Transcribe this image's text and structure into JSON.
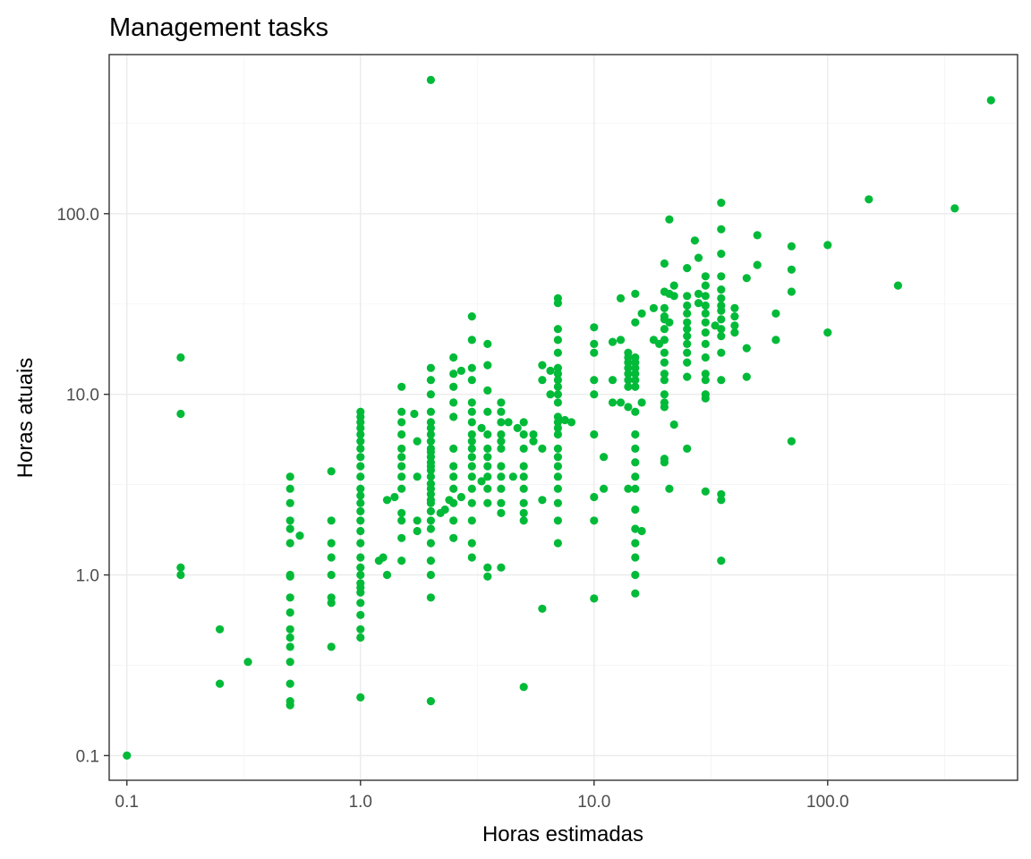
{
  "chart_data": {
    "type": "scatter",
    "title": "Management tasks",
    "xlabel": "Horas estimadas",
    "ylabel": "Horas atuais",
    "x_scale": "log10",
    "y_scale": "log10",
    "xlim": [
      0.084,
      650
    ],
    "ylim": [
      0.073,
      760
    ],
    "x_ticks": [
      0.1,
      1,
      10,
      100
    ],
    "x_tick_labels": [
      "0.1",
      "1.0",
      "10.0",
      "100.0"
    ],
    "y_ticks": [
      0.1,
      1,
      10,
      100
    ],
    "y_tick_labels": [
      "0.1",
      "1.0",
      "10.0",
      "100.0"
    ],
    "grid": true,
    "point_color": "#00BA38",
    "points": [
      [
        0.1,
        0.1
      ],
      [
        0.17,
        16
      ],
      [
        0.17,
        7.8
      ],
      [
        0.17,
        1.1
      ],
      [
        0.17,
        1.0
      ],
      [
        0.25,
        0.5
      ],
      [
        0.25,
        0.25
      ],
      [
        0.33,
        0.33
      ],
      [
        0.5,
        3.5
      ],
      [
        0.5,
        3.0
      ],
      [
        0.5,
        2.5
      ],
      [
        0.5,
        2.0
      ],
      [
        0.5,
        1.8
      ],
      [
        0.5,
        1.5
      ],
      [
        0.5,
        1.0
      ],
      [
        0.5,
        0.98
      ],
      [
        0.5,
        0.75
      ],
      [
        0.5,
        0.62
      ],
      [
        0.5,
        0.5
      ],
      [
        0.5,
        0.45
      ],
      [
        0.5,
        0.4
      ],
      [
        0.5,
        0.33
      ],
      [
        0.5,
        0.25
      ],
      [
        0.5,
        0.2
      ],
      [
        0.5,
        0.19
      ],
      [
        0.55,
        1.65
      ],
      [
        0.75,
        3.75
      ],
      [
        0.75,
        2.0
      ],
      [
        0.75,
        1.5
      ],
      [
        0.75,
        1.25
      ],
      [
        0.75,
        1.0
      ],
      [
        0.75,
        0.75
      ],
      [
        0.75,
        0.7
      ],
      [
        0.75,
        0.4
      ],
      [
        1,
        8.0
      ],
      [
        1,
        7.5
      ],
      [
        1,
        7.0
      ],
      [
        1,
        6.5
      ],
      [
        1,
        6.0
      ],
      [
        1,
        5.5
      ],
      [
        1,
        5.0
      ],
      [
        1,
        4.5
      ],
      [
        1,
        4.0
      ],
      [
        1,
        3.5
      ],
      [
        1,
        3.0
      ],
      [
        1,
        2.75
      ],
      [
        1,
        2.5
      ],
      [
        1,
        2.25
      ],
      [
        1,
        2.0
      ],
      [
        1,
        1.75
      ],
      [
        1,
        1.5
      ],
      [
        1,
        1.25
      ],
      [
        1,
        1.1
      ],
      [
        1,
        1.0
      ],
      [
        1,
        0.9
      ],
      [
        1,
        0.85
      ],
      [
        1,
        0.8
      ],
      [
        1,
        0.7
      ],
      [
        1,
        0.6
      ],
      [
        1,
        0.5
      ],
      [
        1,
        0.45
      ],
      [
        1,
        0.21
      ],
      [
        1.2,
        1.2
      ],
      [
        1.25,
        1.25
      ],
      [
        1.3,
        2.6
      ],
      [
        1.3,
        1.0
      ],
      [
        1.4,
        2.7
      ],
      [
        1.5,
        11
      ],
      [
        1.5,
        8.0
      ],
      [
        1.5,
        7.0
      ],
      [
        1.5,
        6.0
      ],
      [
        1.5,
        5.0
      ],
      [
        1.5,
        4.5
      ],
      [
        1.5,
        4.0
      ],
      [
        1.5,
        3.5
      ],
      [
        1.5,
        3.0
      ],
      [
        1.5,
        2.2
      ],
      [
        1.5,
        2.0
      ],
      [
        1.5,
        1.6
      ],
      [
        1.5,
        1.2
      ],
      [
        1.7,
        7.8
      ],
      [
        1.75,
        5.5
      ],
      [
        1.75,
        3.5
      ],
      [
        1.75,
        2.0
      ],
      [
        1.75,
        1.75
      ],
      [
        2,
        14
      ],
      [
        2,
        12
      ],
      [
        2,
        10
      ],
      [
        2,
        8.0
      ],
      [
        2,
        7.0
      ],
      [
        2,
        6.5
      ],
      [
        2,
        6.0
      ],
      [
        2,
        5.5
      ],
      [
        2,
        5.0
      ],
      [
        2,
        4.8
      ],
      [
        2,
        4.5
      ],
      [
        2,
        4.2
      ],
      [
        2,
        4.0
      ],
      [
        2,
        3.8
      ],
      [
        2,
        3.5
      ],
      [
        2,
        3.2
      ],
      [
        2,
        3.0
      ],
      [
        2,
        2.8
      ],
      [
        2,
        2.6
      ],
      [
        2,
        2.5
      ],
      [
        2,
        2.25
      ],
      [
        2,
        2.0
      ],
      [
        2,
        1.8
      ],
      [
        2,
        1.5
      ],
      [
        2,
        1.2
      ],
      [
        2,
        1.0
      ],
      [
        2,
        0.75
      ],
      [
        2,
        0.2
      ],
      [
        2,
        550
      ],
      [
        2.2,
        2.2
      ],
      [
        2.3,
        2.3
      ],
      [
        2.4,
        2.6
      ],
      [
        2.5,
        16
      ],
      [
        2.5,
        13
      ],
      [
        2.5,
        11
      ],
      [
        2.5,
        9.0
      ],
      [
        2.5,
        7.5
      ],
      [
        2.5,
        5.0
      ],
      [
        2.5,
        4.0
      ],
      [
        2.5,
        3.5
      ],
      [
        2.5,
        3.0
      ],
      [
        2.5,
        2.5
      ],
      [
        2.5,
        2.0
      ],
      [
        2.5,
        1.6
      ],
      [
        2.7,
        13.5
      ],
      [
        2.7,
        2.7
      ],
      [
        3,
        27
      ],
      [
        3,
        20
      ],
      [
        3,
        14
      ],
      [
        3,
        12
      ],
      [
        3,
        9.0
      ],
      [
        3,
        8.0
      ],
      [
        3,
        7.0
      ],
      [
        3,
        6.0
      ],
      [
        3,
        5.5
      ],
      [
        3,
        5.0
      ],
      [
        3,
        4.5
      ],
      [
        3,
        4.0
      ],
      [
        3,
        3.5
      ],
      [
        3,
        3.0
      ],
      [
        3,
        2.5
      ],
      [
        3,
        2.0
      ],
      [
        3,
        1.5
      ],
      [
        3,
        1.25
      ],
      [
        3.3,
        6.5
      ],
      [
        3.3,
        3.3
      ],
      [
        3.5,
        19
      ],
      [
        3.5,
        14.5
      ],
      [
        3.5,
        10.5
      ],
      [
        3.5,
        8.0
      ],
      [
        3.5,
        6.0
      ],
      [
        3.5,
        5.0
      ],
      [
        3.5,
        4.5
      ],
      [
        3.5,
        4.0
      ],
      [
        3.5,
        3.5
      ],
      [
        3.5,
        3.0
      ],
      [
        3.5,
        2.5
      ],
      [
        3.5,
        1.1
      ],
      [
        3.5,
        0.98
      ],
      [
        4,
        9.0
      ],
      [
        4,
        8.0
      ],
      [
        4,
        7.0
      ],
      [
        4,
        6.0
      ],
      [
        4,
        5.5
      ],
      [
        4,
        5.0
      ],
      [
        4,
        4.0
      ],
      [
        4,
        3.5
      ],
      [
        4,
        3.0
      ],
      [
        4,
        2.5
      ],
      [
        4,
        2.2
      ],
      [
        4,
        1.1
      ],
      [
        4.3,
        7.0
      ],
      [
        4.5,
        3.5
      ],
      [
        4.7,
        6.5
      ],
      [
        5,
        7.0
      ],
      [
        5,
        6.0
      ],
      [
        5,
        5.0
      ],
      [
        5,
        4.0
      ],
      [
        5,
        3.5
      ],
      [
        5,
        3.0
      ],
      [
        5,
        2.5
      ],
      [
        5,
        2.2
      ],
      [
        5,
        2.0
      ],
      [
        5,
        0.24
      ],
      [
        5.5,
        6.0
      ],
      [
        5.5,
        5.5
      ],
      [
        6,
        14.5
      ],
      [
        6,
        12
      ],
      [
        6,
        5.0
      ],
      [
        6,
        2.6
      ],
      [
        6,
        0.65
      ],
      [
        6.5,
        13.5
      ],
      [
        6.5,
        10
      ],
      [
        7,
        34
      ],
      [
        7,
        32
      ],
      [
        7,
        23
      ],
      [
        7,
        20
      ],
      [
        7,
        17
      ],
      [
        7,
        14
      ],
      [
        7,
        13
      ],
      [
        7,
        12
      ],
      [
        7,
        11
      ],
      [
        7,
        10
      ],
      [
        7,
        9.0
      ],
      [
        7,
        7.5
      ],
      [
        7,
        7.0
      ],
      [
        7,
        6.5
      ],
      [
        7,
        6.0
      ],
      [
        7,
        5.0
      ],
      [
        7,
        4.5
      ],
      [
        7,
        4.0
      ],
      [
        7,
        3.5
      ],
      [
        7,
        3.0
      ],
      [
        7,
        2.5
      ],
      [
        7,
        2.0
      ],
      [
        7,
        1.5
      ],
      [
        7.5,
        7.2
      ],
      [
        8,
        7.0
      ],
      [
        10,
        23.5
      ],
      [
        10,
        19
      ],
      [
        10,
        17
      ],
      [
        10,
        12
      ],
      [
        10,
        10
      ],
      [
        10,
        6.0
      ],
      [
        10,
        2.7
      ],
      [
        10,
        2.0
      ],
      [
        10,
        0.74
      ],
      [
        11,
        4.5
      ],
      [
        11,
        3.0
      ],
      [
        12,
        19.5
      ],
      [
        12,
        9.0
      ],
      [
        12,
        12
      ],
      [
        13,
        34
      ],
      [
        13,
        20
      ],
      [
        13,
        9.0
      ],
      [
        14,
        17
      ],
      [
        14,
        16
      ],
      [
        14,
        15
      ],
      [
        14,
        14
      ],
      [
        14,
        13
      ],
      [
        14,
        12
      ],
      [
        14,
        11
      ],
      [
        14,
        8.5
      ],
      [
        14,
        3.0
      ],
      [
        15,
        36
      ],
      [
        15,
        25
      ],
      [
        15,
        16
      ],
      [
        15,
        15
      ],
      [
        15,
        14
      ],
      [
        15,
        13
      ],
      [
        15,
        12
      ],
      [
        15,
        11
      ],
      [
        15,
        8.0
      ],
      [
        15,
        6.0
      ],
      [
        15,
        5.0
      ],
      [
        15,
        4.2
      ],
      [
        15,
        3.5
      ],
      [
        15,
        3.0
      ],
      [
        15,
        2.3
      ],
      [
        15,
        1.8
      ],
      [
        15,
        1.5
      ],
      [
        15,
        1.25
      ],
      [
        15,
        1.0
      ],
      [
        15,
        0.79
      ],
      [
        16,
        28
      ],
      [
        16,
        9.0
      ],
      [
        16,
        1.75
      ],
      [
        18,
        30
      ],
      [
        18,
        20
      ],
      [
        19,
        19
      ],
      [
        20,
        53
      ],
      [
        20,
        37
      ],
      [
        20,
        30
      ],
      [
        20,
        27
      ],
      [
        20,
        26
      ],
      [
        20,
        23
      ],
      [
        20,
        20
      ],
      [
        20,
        17
      ],
      [
        20,
        15
      ],
      [
        20,
        13
      ],
      [
        20,
        12
      ],
      [
        20,
        10
      ],
      [
        20,
        9.0
      ],
      [
        20,
        8.5
      ],
      [
        20,
        4.4
      ],
      [
        20,
        4.2
      ],
      [
        21,
        93
      ],
      [
        21,
        36
      ],
      [
        21,
        25
      ],
      [
        21,
        3.0
      ],
      [
        22,
        40
      ],
      [
        22,
        35
      ],
      [
        22,
        6.8
      ],
      [
        25,
        50
      ],
      [
        25,
        35
      ],
      [
        25,
        31
      ],
      [
        25,
        28
      ],
      [
        25,
        25
      ],
      [
        25,
        23
      ],
      [
        25,
        21
      ],
      [
        25,
        19
      ],
      [
        25,
        17
      ],
      [
        25,
        15
      ],
      [
        25,
        12.5
      ],
      [
        25,
        5.0
      ],
      [
        27,
        71
      ],
      [
        28,
        57
      ],
      [
        28,
        36
      ],
      [
        28,
        32
      ],
      [
        30,
        45
      ],
      [
        30,
        40
      ],
      [
        30,
        35
      ],
      [
        30,
        31
      ],
      [
        30,
        28
      ],
      [
        30,
        25
      ],
      [
        30,
        22
      ],
      [
        30,
        19
      ],
      [
        30,
        16
      ],
      [
        30,
        13
      ],
      [
        30,
        12
      ],
      [
        30,
        10
      ],
      [
        30,
        9.5
      ],
      [
        30,
        2.9
      ],
      [
        33,
        24
      ],
      [
        35,
        115
      ],
      [
        35,
        82
      ],
      [
        35,
        60
      ],
      [
        35,
        45
      ],
      [
        35,
        38
      ],
      [
        35,
        34
      ],
      [
        35,
        31
      ],
      [
        35,
        29
      ],
      [
        35,
        26
      ],
      [
        35,
        23
      ],
      [
        35,
        21
      ],
      [
        35,
        17
      ],
      [
        35,
        12
      ],
      [
        35,
        2.8
      ],
      [
        35,
        2.6
      ],
      [
        35,
        1.2
      ],
      [
        40,
        30
      ],
      [
        40,
        27
      ],
      [
        40,
        24
      ],
      [
        40,
        22
      ],
      [
        45,
        44
      ],
      [
        45,
        18
      ],
      [
        45,
        12.5
      ],
      [
        50,
        76
      ],
      [
        50,
        52
      ],
      [
        60,
        28
      ],
      [
        60,
        20
      ],
      [
        70,
        66
      ],
      [
        70,
        49
      ],
      [
        70,
        37
      ],
      [
        70,
        5.5
      ],
      [
        100,
        67
      ],
      [
        100,
        22
      ],
      [
        150,
        120
      ],
      [
        200,
        40
      ],
      [
        350,
        107
      ],
      [
        500,
        425
      ]
    ]
  }
}
